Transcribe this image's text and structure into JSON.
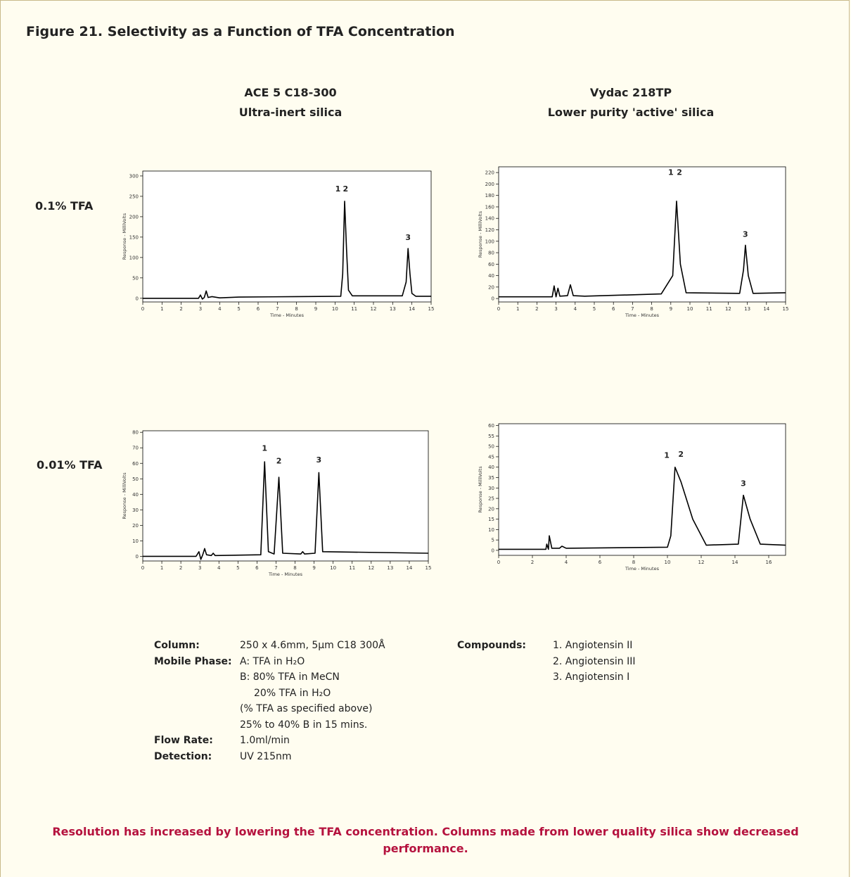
{
  "title": "Figure 21. Selectivity as a Function of TFA Concentration",
  "columns": [
    {
      "name": "ACE 5 C18-300",
      "subtitle": "Ultra-inert silica"
    },
    {
      "name": "Vydac 218TP",
      "subtitle": "Lower purity 'active' silica"
    }
  ],
  "rows": [
    "0.1% TFA",
    "0.01% TFA"
  ],
  "chart_data": [
    {
      "type": "line",
      "xlabel": "Time - Minutes",
      "ylabel": "Response - MilliVolts",
      "color": "#000000",
      "x": [
        0,
        2.9,
        3.0,
        3.1,
        3.2,
        3.3,
        3.4,
        3.6,
        4,
        5,
        8,
        10.3,
        10.4,
        10.5,
        10.6,
        10.7,
        10.9,
        13.5,
        13.7,
        13.8,
        13.9,
        14.0,
        14.2,
        15
      ],
      "values": [
        0,
        0,
        8,
        -2,
        2,
        18,
        2,
        4,
        1,
        3,
        4,
        5,
        60,
        238,
        120,
        20,
        6,
        6,
        40,
        122,
        60,
        12,
        5,
        5
      ],
      "xlim": [
        0,
        15
      ],
      "xticks": [
        0,
        1,
        2,
        3,
        4,
        5,
        6,
        7,
        8,
        9,
        10,
        11,
        12,
        13,
        14,
        15
      ],
      "ylim": [
        -9,
        312
      ],
      "yticks": [
        0,
        50,
        100,
        150,
        200,
        250,
        300
      ],
      "annotations": [
        {
          "text": "1",
          "x": 10.15,
          "y": 262
        },
        {
          "text": "2",
          "x": 10.55,
          "y": 262
        },
        {
          "text": "3",
          "x": 13.8,
          "y": 143
        }
      ]
    },
    {
      "type": "line",
      "xlabel": "Time - Minutes",
      "ylabel": "Response - MilliVolts",
      "color": "#000000",
      "x": [
        0,
        2.8,
        2.9,
        3.0,
        3.1,
        3.2,
        3.6,
        3.75,
        3.9,
        4.5,
        8.5,
        9.1,
        9.3,
        9.5,
        9.8,
        12.6,
        12.8,
        12.9,
        13.05,
        13.3,
        15
      ],
      "values": [
        3,
        3,
        22,
        3,
        18,
        4,
        5,
        24,
        5,
        4,
        8,
        40,
        170,
        60,
        10,
        9,
        50,
        93,
        40,
        9,
        10
      ],
      "xlim": [
        0,
        15
      ],
      "xticks": [
        0,
        1,
        2,
        3,
        4,
        5,
        6,
        7,
        8,
        9,
        10,
        11,
        12,
        13,
        14,
        15
      ],
      "ylim": [
        -6,
        230
      ],
      "yticks": [
        0,
        20,
        40,
        60,
        80,
        100,
        120,
        140,
        160,
        180,
        200,
        220
      ],
      "annotations": [
        {
          "text": "1",
          "x": 9.0,
          "y": 216
        },
        {
          "text": "2",
          "x": 9.45,
          "y": 216
        },
        {
          "text": "3",
          "x": 12.9,
          "y": 108
        }
      ]
    },
    {
      "type": "line",
      "xlabel": "Time - Minutes",
      "ylabel": "Response - MilliVolts",
      "color": "#000000",
      "x": [
        0,
        2.8,
        2.95,
        3.05,
        3.15,
        3.25,
        3.35,
        3.6,
        3.7,
        3.8,
        6.2,
        6.4,
        6.6,
        6.9,
        7.15,
        7.35,
        8.3,
        8.4,
        8.5,
        9.05,
        9.25,
        9.45,
        15
      ],
      "values": [
        0,
        0,
        3,
        -2,
        1,
        5,
        1,
        0.5,
        2,
        0.5,
        1,
        61,
        3,
        1.5,
        51,
        2,
        1.5,
        3,
        1.5,
        2,
        54,
        3,
        2
      ],
      "xlim": [
        0,
        15
      ],
      "xticks": [
        0,
        1,
        2,
        3,
        4,
        5,
        6,
        7,
        8,
        9,
        10,
        11,
        12,
        13,
        14,
        15
      ],
      "ylim": [
        -3,
        81
      ],
      "yticks": [
        0,
        10,
        20,
        30,
        40,
        50,
        60,
        70,
        80
      ],
      "annotations": [
        {
          "text": "1",
          "x": 6.4,
          "y": 68
        },
        {
          "text": "2",
          "x": 7.15,
          "y": 60
        },
        {
          "text": "3",
          "x": 9.25,
          "y": 60.5
        }
      ]
    },
    {
      "type": "line",
      "xlabel": "Time - Minutes",
      "ylabel": "Response - MilliVolts",
      "color": "#000000",
      "x": [
        0,
        2.8,
        2.85,
        2.95,
        3.0,
        3.15,
        3.6,
        3.75,
        4,
        10,
        10.2,
        10.45,
        10.8,
        11.5,
        12.3,
        14.2,
        14.5,
        14.9,
        15.5,
        17
      ],
      "values": [
        0.5,
        0.5,
        3,
        0.5,
        7,
        1,
        1,
        2,
        1,
        1.5,
        7,
        40,
        33,
        15,
        2.5,
        3,
        26.5,
        15,
        3,
        2.5
      ],
      "xlim": [
        0,
        17
      ],
      "xticks": [
        0,
        2,
        4,
        6,
        8,
        10,
        12,
        14,
        16
      ],
      "ylim": [
        -2.4,
        60.9
      ],
      "yticks": [
        0,
        5,
        10,
        15,
        20,
        25,
        30,
        35,
        40,
        45,
        50,
        55,
        60
      ],
      "annotations": [
        {
          "text": "1",
          "x": 9.96,
          "y": 44.4
        },
        {
          "text": "2",
          "x": 10.8,
          "y": 45
        },
        {
          "text": "3",
          "x": 14.5,
          "y": 31
        }
      ]
    }
  ],
  "conditions": [
    {
      "label": "Column:",
      "lines": [
        "250 x 4.6mm, 5µm C18 300Å"
      ]
    },
    {
      "label": "Mobile Phase:",
      "lines": [
        "A: TFA in H₂O",
        "B: 80% TFA in MeCN",
        "20% TFA in H₂O",
        "(% TFA as specified above)",
        "25% to 40% B in 15 mins."
      ]
    },
    {
      "label": "Flow Rate:",
      "lines": [
        "1.0ml/min"
      ]
    },
    {
      "label": "Detection:",
      "lines": [
        "UV 215nm"
      ]
    }
  ],
  "compounds": {
    "label": "Compounds:",
    "items": [
      "1. Angiotensin II",
      "2. Angiotensin III",
      "3. Angiotensin I"
    ]
  },
  "footer": "Resolution has increased by lowering the TFA concentration. Columns made from lower quality silica show decreased performance."
}
